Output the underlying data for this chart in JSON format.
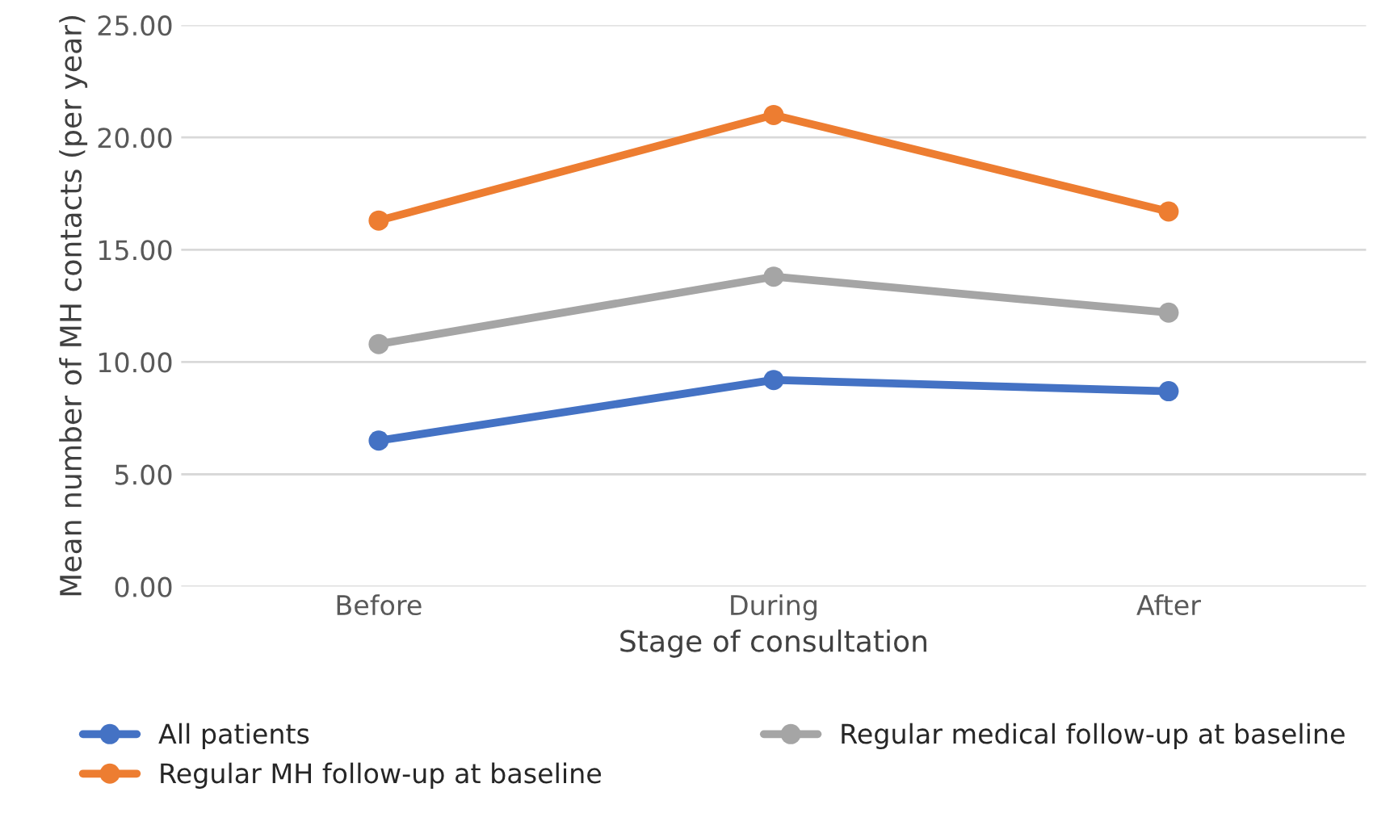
{
  "chart_data": {
    "type": "line",
    "xlabel": "Stage of consultation",
    "ylabel": "Mean number of MH contacts (per year)",
    "categories": [
      "Before",
      "During",
      "After"
    ],
    "series": [
      {
        "name": "All patients",
        "color": "#4472c4",
        "values": [
          6.5,
          9.2,
          8.7
        ]
      },
      {
        "name": "Regular MH follow-up at baseline",
        "color": "#ed7d31",
        "values": [
          16.3,
          21.0,
          16.7
        ]
      },
      {
        "name": "Regular medical follow-up at baseline",
        "color": "#a5a5a5",
        "values": [
          10.8,
          13.8,
          12.2
        ]
      }
    ],
    "ylim": [
      0,
      25
    ],
    "yticks": [
      {
        "value": 0,
        "label": "0.00"
      },
      {
        "value": 5,
        "label": "5.00"
      },
      {
        "value": 10,
        "label": "10.00"
      },
      {
        "value": 15,
        "label": "15.00"
      },
      {
        "value": 20,
        "label": "20.00"
      },
      {
        "value": 25,
        "label": "25.00"
      }
    ],
    "grid": "y",
    "legend": "bottom",
    "marker": "circle",
    "line_style": "solid"
  }
}
